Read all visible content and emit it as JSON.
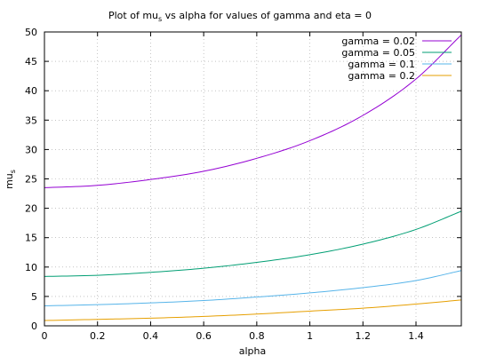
{
  "chart_data": {
    "type": "line",
    "title": "Plot of mu",
    "title_subscript": "s",
    "title_rest": " vs alpha for values of gamma and eta = 0",
    "xlabel": "alpha",
    "ylabel": "mu",
    "ylabel_subscript": "s",
    "xlim": [
      0,
      1.5708
    ],
    "ylim": [
      0,
      50
    ],
    "x_ticks": [
      0,
      0.2,
      0.4,
      0.6,
      0.8,
      1,
      1.2,
      1.4
    ],
    "x_tick_labels": [
      "0",
      "0.2",
      "0.4",
      "0.6",
      "0.8",
      "1",
      "1.2",
      "1.4"
    ],
    "y_ticks": [
      0,
      5,
      10,
      15,
      20,
      25,
      30,
      35,
      40,
      45,
      50
    ],
    "y_tick_labels": [
      "0",
      "5",
      "10",
      "15",
      "20",
      "25",
      "30",
      "35",
      "40",
      "45",
      "50"
    ],
    "grid": true,
    "legend_position": "top-right",
    "series": [
      {
        "name": "gamma = 0.02",
        "color": "#9400d3",
        "x": [
          0,
          0.2,
          0.4,
          0.6,
          0.8,
          1.0,
          1.2,
          1.4,
          1.5708
        ],
        "y": [
          23.5,
          23.9,
          24.9,
          26.3,
          28.5,
          31.5,
          35.8,
          42.0,
          49.5
        ]
      },
      {
        "name": "gamma = 0.05",
        "color": "#009e73",
        "x": [
          0,
          0.2,
          0.4,
          0.6,
          0.8,
          1.0,
          1.2,
          1.4,
          1.5708
        ],
        "y": [
          8.4,
          8.6,
          9.1,
          9.8,
          10.8,
          12.1,
          13.9,
          16.4,
          19.5
        ]
      },
      {
        "name": "gamma = 0.1",
        "color": "#56b4e9",
        "x": [
          0,
          0.2,
          0.4,
          0.6,
          0.8,
          1.0,
          1.2,
          1.4,
          1.5708
        ],
        "y": [
          3.4,
          3.6,
          3.9,
          4.3,
          4.9,
          5.6,
          6.5,
          7.7,
          9.4
        ]
      },
      {
        "name": "gamma = 0.2",
        "color": "#e69f00",
        "x": [
          0,
          0.2,
          0.4,
          0.6,
          0.8,
          1.0,
          1.2,
          1.4,
          1.5708
        ],
        "y": [
          0.9,
          1.1,
          1.3,
          1.6,
          2.0,
          2.5,
          3.0,
          3.7,
          4.4
        ]
      }
    ]
  }
}
